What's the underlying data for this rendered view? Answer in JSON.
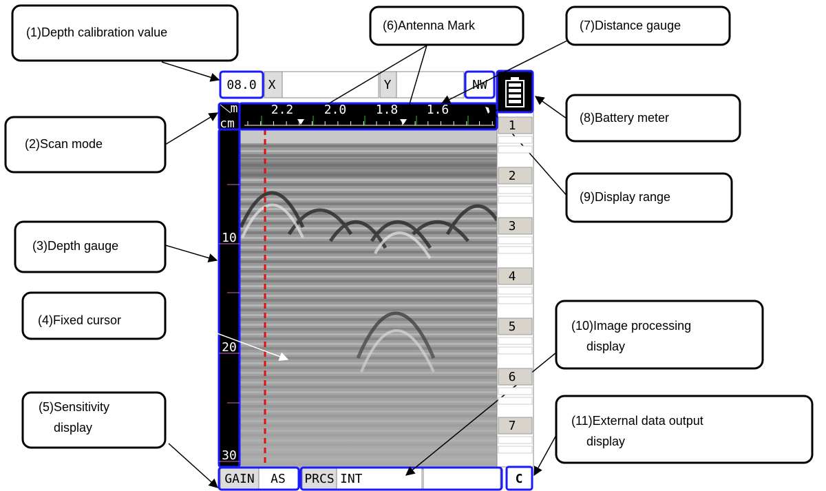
{
  "screen": {
    "depth_calibration": "08.0",
    "x_label": "X",
    "y_label": "Y",
    "direction": "NW",
    "unit_m": "m",
    "unit_cm": "cm",
    "distance_labels": [
      "2.2",
      "2.0",
      "1.8",
      "1.6"
    ],
    "depth_labels": [
      "10",
      "20",
      "30"
    ],
    "side_buttons": [
      "1",
      "2",
      "3",
      "4",
      "5",
      "6",
      "7"
    ],
    "gain_label": "GAIN",
    "gain_value": "AS",
    "prcs_label": "PRCS",
    "prcs_value": "INT",
    "output": "C"
  },
  "callouts": [
    {
      "lines": [
        "(1)Depth calibration value"
      ]
    },
    {
      "lines": [
        "(2)Scan mode"
      ]
    },
    {
      "lines": [
        "(3)Depth gauge"
      ]
    },
    {
      "lines": [
        "(4)Fixed cursor"
      ]
    },
    {
      "lines": [
        "(5)Sensitivity",
        "display"
      ]
    },
    {
      "lines": [
        "(6)Antenna Mark"
      ]
    },
    {
      "lines": [
        "(7)Distance gauge"
      ]
    },
    {
      "lines": [
        "(8)Battery meter"
      ]
    },
    {
      "lines": [
        "(9)Display range"
      ]
    },
    {
      "lines": [
        "(10)Image processing",
        "display"
      ]
    },
    {
      "lines": [
        "(11)External data output",
        "display"
      ]
    }
  ]
}
